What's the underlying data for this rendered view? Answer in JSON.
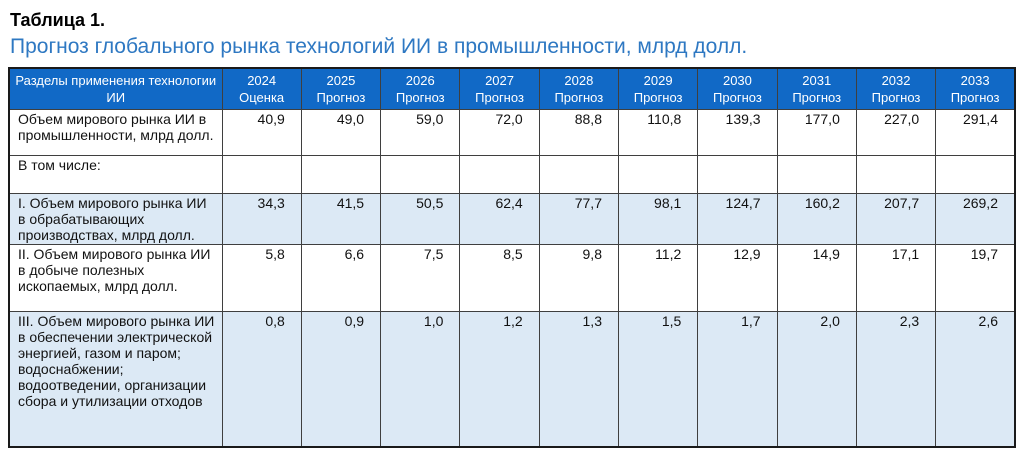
{
  "page": {
    "label": "Таблица 1.",
    "title": "Прогноз глобального рынка технологий ИИ в промышленности, млрд долл."
  },
  "colors": {
    "header_bg": "#1169C6",
    "header_text": "#FFFFFF",
    "shaded_row_bg": "#DCE9F5",
    "title_blue": "#2E78C2",
    "grid_border": "#3F3F3F",
    "outer_border": "#1A1A1A"
  },
  "table": {
    "header": {
      "first_col": "Разделы применения технологии ИИ",
      "year_cols": [
        {
          "year": "2024",
          "type": "Оценка"
        },
        {
          "year": "2025",
          "type": "Прогноз"
        },
        {
          "year": "2026",
          "type": "Прогноз"
        },
        {
          "year": "2027",
          "type": "Прогноз"
        },
        {
          "year": "2028",
          "type": "Прогноз"
        },
        {
          "year": "2029",
          "type": "Прогноз"
        },
        {
          "year": "2030",
          "type": "Прогноз"
        },
        {
          "year": "2031",
          "type": "Прогноз"
        },
        {
          "year": "2032",
          "type": "Прогноз"
        },
        {
          "year": "2033",
          "type": "Прогноз"
        }
      ]
    },
    "rows": [
      {
        "label": "Объем мирового рынка ИИ в промышленности, млрд долл.",
        "values": [
          "40,9",
          "49,0",
          "59,0",
          "72,0",
          "88,8",
          "110,8",
          "139,3",
          "177,0",
          "227,0",
          "291,4"
        ],
        "shaded": false
      },
      {
        "label": "В том числе:",
        "values": [
          "",
          "",
          "",
          "",
          "",
          "",
          "",
          "",
          "",
          ""
        ],
        "shaded": false
      },
      {
        "label": "I. Объем мирового рынка ИИ в обрабатывающих производствах, млрд долл.",
        "values": [
          "34,3",
          "41,5",
          "50,5",
          "62,4",
          "77,7",
          "98,1",
          "124,7",
          "160,2",
          "207,7",
          "269,2"
        ],
        "shaded": true
      },
      {
        "label": "II. Объем мирового рынка ИИ в добыче полезных ископаемых, млрд долл.",
        "values": [
          "5,8",
          "6,6",
          "7,5",
          "8,5",
          "9,8",
          "11,2",
          "12,9",
          "14,9",
          "17,1",
          "19,7"
        ],
        "shaded": false
      },
      {
        "label": "III. Объем мирового рынка ИИ в обеспечении электрической энергией, газом и паром; водоснабжении; водоотведении, организации сбора и утилизации отходов",
        "values": [
          "0,8",
          "0,9",
          "1,0",
          "1,2",
          "1,3",
          "1,5",
          "1,7",
          "2,0",
          "2,3",
          "2,6"
        ],
        "shaded": true
      }
    ]
  }
}
